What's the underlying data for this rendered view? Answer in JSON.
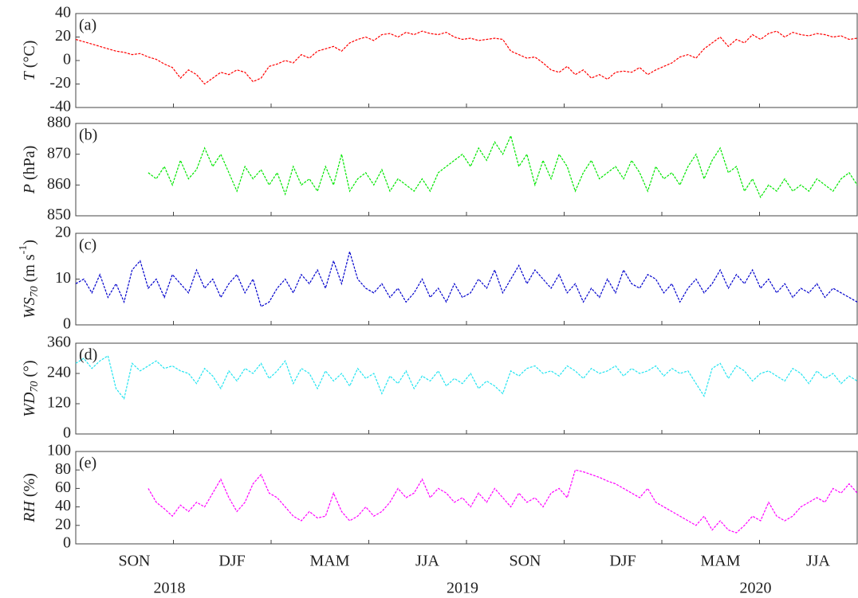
{
  "chart_data": [
    {
      "type": "line",
      "label": "(a)",
      "ylabel_parts": [
        {
          "text": "T",
          "style": "italic"
        },
        {
          "text": " (°C)",
          "style": "normal"
        }
      ],
      "ylim": [
        -40,
        40
      ],
      "yticks": [
        -40,
        -20,
        0,
        20,
        40
      ],
      "series": [
        {
          "name": "T",
          "color": "#ff0000",
          "values": [
            18,
            16,
            14,
            12,
            10,
            8,
            7,
            5,
            6,
            3,
            1,
            -3,
            -6,
            -15,
            -8,
            -12,
            -20,
            -15,
            -10,
            -12,
            -8,
            -10,
            -18,
            -15,
            -5,
            -3,
            0,
            -2,
            5,
            2,
            8,
            10,
            12,
            8,
            15,
            18,
            20,
            17,
            22,
            23,
            20,
            24,
            22,
            25,
            23,
            22,
            24,
            20,
            18,
            19,
            17,
            18,
            19,
            18,
            8,
            5,
            2,
            3,
            -2,
            -8,
            -10,
            -5,
            -12,
            -8,
            -15,
            -12,
            -16,
            -10,
            -9,
            -10,
            -6,
            -12,
            -8,
            -5,
            -2,
            3,
            5,
            2,
            10,
            15,
            20,
            12,
            18,
            15,
            22,
            18,
            23,
            25,
            20,
            24,
            22,
            21,
            23,
            22,
            20,
            21,
            18,
            19
          ]
        }
      ]
    },
    {
      "type": "line",
      "label": "(b)",
      "ylabel_parts": [
        {
          "text": "P",
          "style": "italic"
        },
        {
          "text": " (hPa)",
          "style": "normal"
        }
      ],
      "ylim": [
        850,
        880
      ],
      "yticks": [
        850,
        860,
        870,
        880
      ],
      "series": [
        {
          "name": "P",
          "color": "#00e600",
          "values": [
            null,
            null,
            null,
            null,
            null,
            null,
            null,
            null,
            null,
            864,
            862,
            866,
            860,
            868,
            862,
            865,
            872,
            866,
            870,
            864,
            858,
            866,
            862,
            865,
            860,
            864,
            857,
            866,
            860,
            862,
            858,
            866,
            860,
            870,
            858,
            862,
            864,
            860,
            865,
            858,
            862,
            860,
            858,
            862,
            858,
            864,
            866,
            868,
            870,
            866,
            872,
            868,
            874,
            870,
            876,
            866,
            870,
            860,
            868,
            862,
            870,
            866,
            858,
            864,
            868,
            862,
            864,
            866,
            862,
            868,
            864,
            858,
            866,
            862,
            864,
            860,
            866,
            870,
            862,
            868,
            872,
            864,
            866,
            858,
            862,
            856,
            860,
            858,
            862,
            858,
            860,
            858,
            862,
            860,
            858,
            862,
            864,
            860
          ]
        }
      ]
    },
    {
      "type": "line",
      "label": "(c)",
      "ylabel_parts": [
        {
          "text": "WS",
          "style": "italic"
        },
        {
          "text": "70",
          "style": "italic-sub"
        },
        {
          "text": " (m s",
          "style": "normal"
        },
        {
          "text": "-1",
          "style": "sup"
        },
        {
          "text": ")",
          "style": "normal"
        }
      ],
      "ylim": [
        0,
        20
      ],
      "yticks": [
        0,
        10,
        20
      ],
      "series": [
        {
          "name": "WS70",
          "color": "#0000cc",
          "values": [
            9,
            10,
            7,
            11,
            6,
            9,
            5,
            12,
            14,
            8,
            10,
            6,
            11,
            9,
            7,
            12,
            8,
            10,
            6,
            9,
            11,
            7,
            10,
            4,
            5,
            8,
            10,
            7,
            11,
            9,
            12,
            8,
            14,
            9,
            16,
            10,
            8,
            7,
            9,
            6,
            8,
            5,
            7,
            10,
            6,
            8,
            5,
            9,
            6,
            7,
            10,
            8,
            12,
            7,
            10,
            13,
            9,
            12,
            10,
            8,
            11,
            7,
            9,
            5,
            8,
            6,
            10,
            7,
            12,
            9,
            8,
            11,
            10,
            7,
            9,
            5,
            8,
            10,
            7,
            9,
            12,
            8,
            11,
            9,
            12,
            8,
            10,
            7,
            9,
            6,
            8,
            7,
            9,
            6,
            8,
            7,
            6,
            5
          ]
        }
      ]
    },
    {
      "type": "line",
      "label": "(d)",
      "ylabel_parts": [
        {
          "text": "WD",
          "style": "italic"
        },
        {
          "text": "70",
          "style": "italic-sub"
        },
        {
          "text": " (°)",
          "style": "normal"
        }
      ],
      "ylim": [
        0,
        360
      ],
      "yticks": [
        0,
        120,
        240,
        360
      ],
      "series": [
        {
          "name": "WD70",
          "color": "#22e4f0",
          "values": [
            280,
            300,
            260,
            290,
            310,
            180,
            140,
            280,
            250,
            270,
            290,
            260,
            270,
            250,
            240,
            200,
            260,
            230,
            180,
            250,
            210,
            260,
            240,
            280,
            220,
            250,
            290,
            200,
            260,
            240,
            180,
            250,
            210,
            240,
            190,
            260,
            220,
            240,
            160,
            230,
            200,
            250,
            180,
            230,
            210,
            250,
            190,
            220,
            200,
            240,
            180,
            210,
            190,
            160,
            250,
            230,
            260,
            270,
            240,
            250,
            230,
            270,
            250,
            220,
            260,
            240,
            250,
            270,
            230,
            260,
            240,
            250,
            270,
            230,
            260,
            240,
            250,
            200,
            150,
            260,
            280,
            220,
            270,
            250,
            210,
            240,
            250,
            230,
            210,
            260,
            240,
            200,
            250,
            220,
            240,
            200,
            230,
            210
          ]
        }
      ]
    },
    {
      "type": "line",
      "label": "(e)",
      "ylabel_parts": [
        {
          "text": "RH",
          "style": "italic"
        },
        {
          "text": " (%)",
          "style": "normal"
        }
      ],
      "ylim": [
        0,
        100
      ],
      "yticks": [
        0,
        20,
        40,
        60,
        80,
        100
      ],
      "series": [
        {
          "name": "RH",
          "color": "#ff00ff",
          "values": [
            null,
            null,
            null,
            null,
            null,
            null,
            null,
            null,
            null,
            60,
            45,
            38,
            30,
            42,
            35,
            45,
            40,
            55,
            70,
            50,
            35,
            45,
            65,
            75,
            55,
            50,
            40,
            30,
            25,
            35,
            28,
            30,
            55,
            35,
            25,
            30,
            40,
            30,
            35,
            45,
            60,
            50,
            55,
            70,
            50,
            60,
            55,
            45,
            50,
            40,
            55,
            45,
            60,
            50,
            40,
            55,
            45,
            50,
            40,
            55,
            60,
            50,
            80,
            78,
            75,
            72,
            68,
            65,
            60,
            55,
            50,
            60,
            45,
            40,
            35,
            30,
            25,
            20,
            30,
            15,
            25,
            15,
            12,
            20,
            30,
            25,
            45,
            30,
            25,
            30,
            40,
            45,
            50,
            45,
            60,
            55,
            65,
            55
          ]
        }
      ]
    }
  ],
  "x_axis": {
    "seasons": [
      "SON",
      "DJF",
      "MAM",
      "JJA",
      "SON",
      "DJF",
      "MAM",
      "JJA"
    ],
    "years": [
      "2018",
      "2019",
      "2020"
    ]
  }
}
